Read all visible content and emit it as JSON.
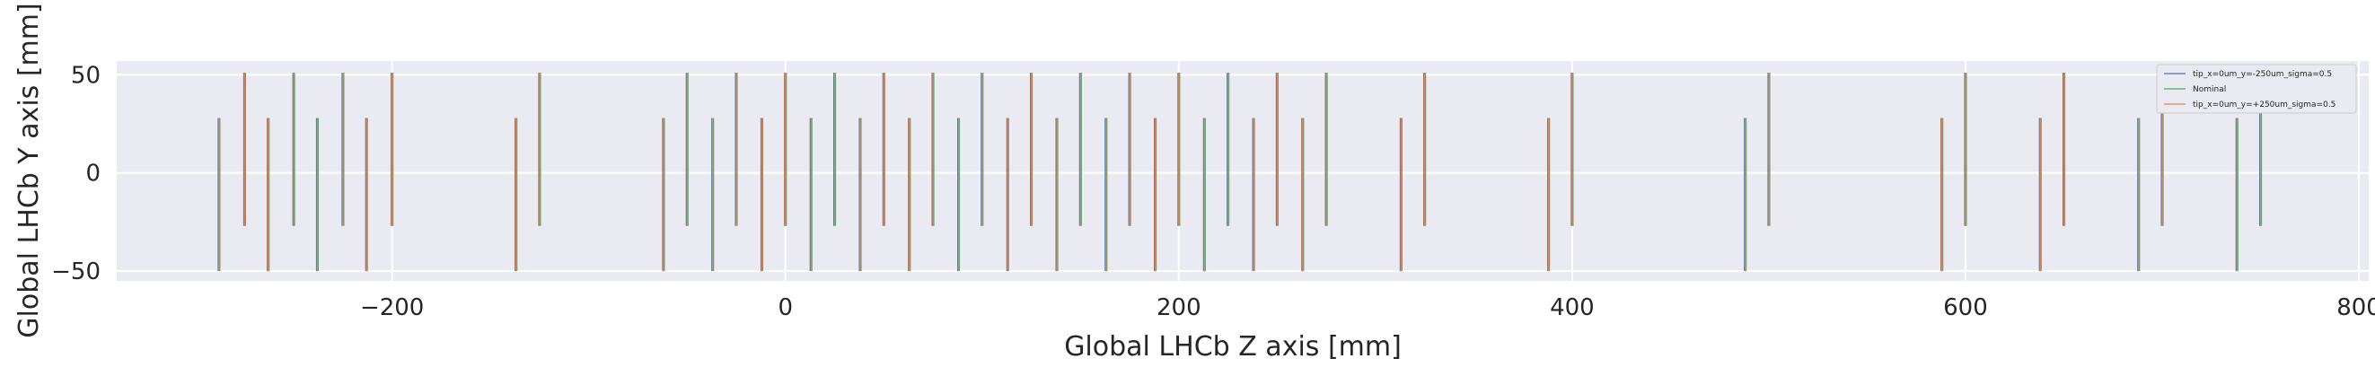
{
  "chart_data": {
    "type": "line",
    "xlabel": "Global LHCb Z axis [mm]",
    "ylabel": "Global LHCb Y axis [mm]",
    "xlim": [
      -340,
      805
    ],
    "ylim": [
      -55,
      57
    ],
    "xticks": [
      -200,
      0,
      200,
      400,
      600,
      800
    ],
    "yticks": [
      -50,
      0,
      50
    ],
    "grid": true,
    "legend_position": "upper right",
    "colors": {
      "background": "#eaeaf2",
      "grid": "#ffffff",
      "series_minus": "#4c72b0",
      "series_nominal": "#55a868",
      "series_plus": "#dd8452"
    },
    "series": [
      {
        "name": "tip_x=0um_y=-250um_sigma=0.5",
        "color": "#4c72b0"
      },
      {
        "name": "Nominal",
        "color": "#55a868"
      },
      {
        "name": "tip_x=0um_y=+250um_sigma=0.5",
        "color": "#dd8452"
      }
    ],
    "modules": [
      {
        "z": -288,
        "y": [
          -50,
          28
        ]
      },
      {
        "z": -275,
        "y": [
          -27,
          51
        ]
      },
      {
        "z": -263,
        "y": [
          -50,
          28
        ]
      },
      {
        "z": -250,
        "y": [
          -27,
          51
        ]
      },
      {
        "z": -238,
        "y": [
          -50,
          28
        ]
      },
      {
        "z": -225,
        "y": [
          -27,
          51
        ]
      },
      {
        "z": -213,
        "y": [
          -50,
          28
        ]
      },
      {
        "z": -200,
        "y": [
          -27,
          51
        ]
      },
      {
        "z": -137,
        "y": [
          -50,
          28
        ]
      },
      {
        "z": -125,
        "y": [
          -27,
          51
        ]
      },
      {
        "z": -62,
        "y": [
          -50,
          28
        ]
      },
      {
        "z": -50,
        "y": [
          -27,
          51
        ]
      },
      {
        "z": -37,
        "y": [
          -50,
          28
        ]
      },
      {
        "z": -25,
        "y": [
          -27,
          51
        ]
      },
      {
        "z": -12,
        "y": [
          -50,
          28
        ]
      },
      {
        "z": 0,
        "y": [
          -27,
          51
        ]
      },
      {
        "z": 13,
        "y": [
          -50,
          28
        ]
      },
      {
        "z": 25,
        "y": [
          -27,
          51
        ]
      },
      {
        "z": 38,
        "y": [
          -50,
          28
        ]
      },
      {
        "z": 50,
        "y": [
          -27,
          51
        ]
      },
      {
        "z": 63,
        "y": [
          -50,
          28
        ]
      },
      {
        "z": 75,
        "y": [
          -27,
          51
        ]
      },
      {
        "z": 88,
        "y": [
          -50,
          28
        ]
      },
      {
        "z": 100,
        "y": [
          -27,
          51
        ]
      },
      {
        "z": 113,
        "y": [
          -50,
          28
        ]
      },
      {
        "z": 125,
        "y": [
          -27,
          51
        ]
      },
      {
        "z": 138,
        "y": [
          -50,
          28
        ]
      },
      {
        "z": 150,
        "y": [
          -27,
          51
        ]
      },
      {
        "z": 163,
        "y": [
          -50,
          28
        ]
      },
      {
        "z": 175,
        "y": [
          -27,
          51
        ]
      },
      {
        "z": 188,
        "y": [
          -50,
          28
        ]
      },
      {
        "z": 200,
        "y": [
          -27,
          51
        ]
      },
      {
        "z": 213,
        "y": [
          -50,
          28
        ]
      },
      {
        "z": 225,
        "y": [
          -27,
          51
        ]
      },
      {
        "z": 238,
        "y": [
          -50,
          28
        ]
      },
      {
        "z": 250,
        "y": [
          -27,
          51
        ]
      },
      {
        "z": 263,
        "y": [
          -50,
          28
        ]
      },
      {
        "z": 275,
        "y": [
          -27,
          51
        ]
      },
      {
        "z": 313,
        "y": [
          -50,
          28
        ]
      },
      {
        "z": 325,
        "y": [
          -27,
          51
        ]
      },
      {
        "z": 388,
        "y": [
          -50,
          28
        ]
      },
      {
        "z": 400,
        "y": [
          -27,
          51
        ]
      },
      {
        "z": 488,
        "y": [
          -50,
          28
        ]
      },
      {
        "z": 500,
        "y": [
          -27,
          51
        ]
      },
      {
        "z": 588,
        "y": [
          -50,
          28
        ]
      },
      {
        "z": 600,
        "y": [
          -27,
          51
        ]
      },
      {
        "z": 638,
        "y": [
          -50,
          28
        ]
      },
      {
        "z": 650,
        "y": [
          -27,
          51
        ]
      },
      {
        "z": 688,
        "y": [
          -50,
          28
        ]
      },
      {
        "z": 700,
        "y": [
          -27,
          51
        ]
      },
      {
        "z": 738,
        "y": [
          -50,
          28
        ]
      },
      {
        "z": 750,
        "y": [
          -27,
          51
        ]
      }
    ]
  }
}
